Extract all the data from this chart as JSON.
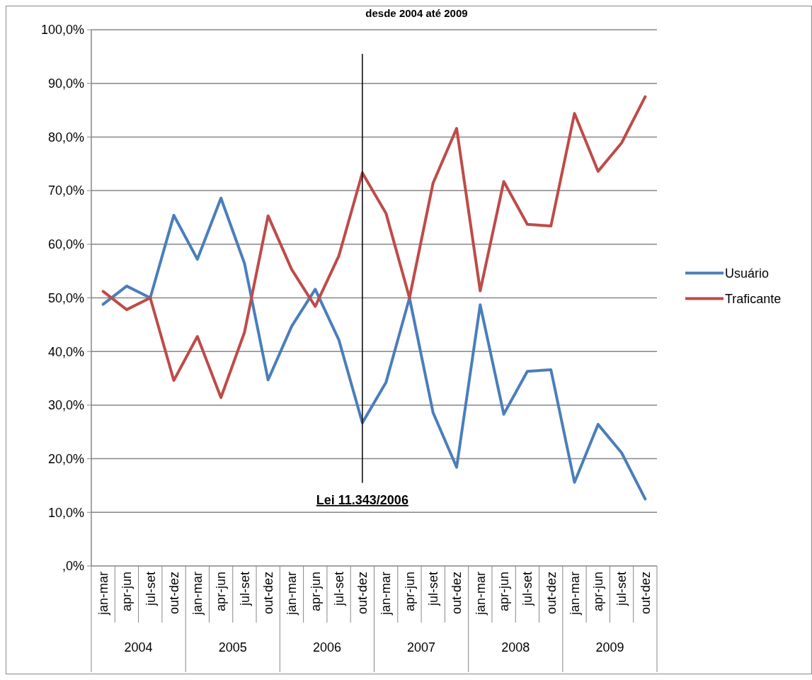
{
  "chart_data": {
    "type": "line",
    "title": "desde 2004 até 2009",
    "categories": [
      "jan-mar",
      "apr-jun",
      "jul-set",
      "out-dez",
      "jan-mar",
      "apr-jun",
      "jul-set",
      "out-dez",
      "jan-mar",
      "apr-jun",
      "jul-set",
      "out-dez",
      "jan-mar",
      "apr-jun",
      "jul-set",
      "out-dez",
      "jan-mar",
      "apr-jun",
      "jul-set",
      "out-dez",
      "jan-mar",
      "apr-jun",
      "jul-set",
      "out-dez"
    ],
    "series": [
      {
        "name": "Usuário",
        "color": "#4a7ebb",
        "values": [
          48.8,
          52.2,
          50,
          65.4,
          57.2,
          68.6,
          56.4,
          34.7,
          44.7,
          51.6,
          42.2,
          26.7,
          34.2,
          50,
          28.6,
          18.4,
          48.7,
          28.3,
          36.3,
          36.6,
          15.6,
          26.4,
          21.1,
          12.5
        ]
      },
      {
        "name": "Traficante",
        "color": "#be4b48",
        "values": [
          51.2,
          47.8,
          50,
          34.6,
          42.8,
          31.4,
          43.6,
          65.3,
          55.3,
          48.4,
          57.8,
          73.3,
          65.8,
          50,
          71.4,
          81.6,
          51.3,
          71.7,
          63.7,
          63.4,
          84.4,
          73.6,
          78.9,
          87.5
        ]
      }
    ],
    "ylim": [
      0,
      100
    ],
    "yticks": [
      {
        "value": 0,
        "label": ",0%"
      },
      {
        "value": 10,
        "label": "10,0%"
      },
      {
        "value": 20,
        "label": "20,0%"
      },
      {
        "value": 30,
        "label": "30,0%"
      },
      {
        "value": 40,
        "label": "40,0%"
      },
      {
        "value": 50,
        "label": "50,0%"
      },
      {
        "value": 60,
        "label": "60,0%"
      },
      {
        "value": 70,
        "label": "70,0%"
      },
      {
        "value": 80,
        "label": "80,0%"
      },
      {
        "value": 90,
        "label": "90,0%"
      },
      {
        "value": 100,
        "label": "100,0%"
      }
    ],
    "annotations": [
      "2004",
      "2005",
      "2006",
      "2007",
      "2008",
      "2009",
      {
        "text": "Lei 11.343/2006"
      }
    ],
    "grid": "y",
    "legend": "right",
    "marker": "none",
    "line_style": "solid"
  }
}
